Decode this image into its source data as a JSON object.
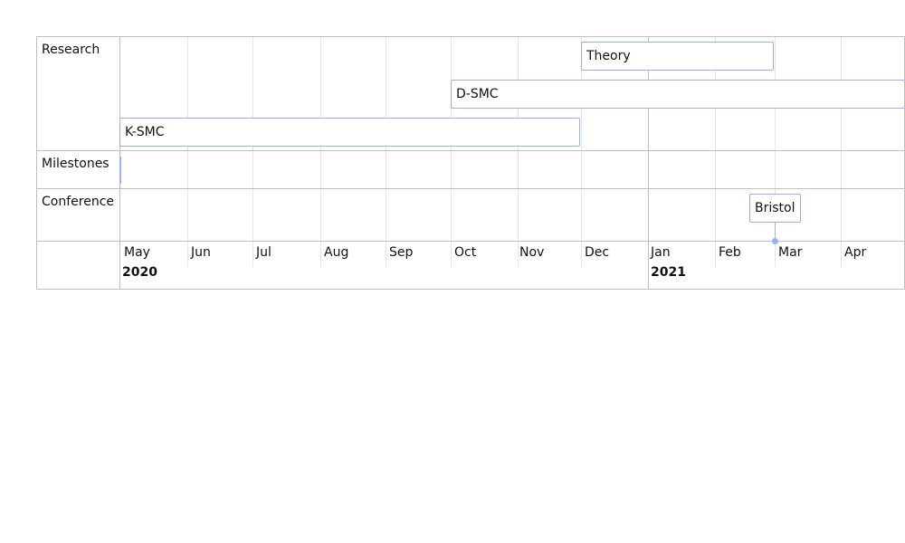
{
  "groups": {
    "research": "Research",
    "milestones": "Milestones",
    "conference": "Conference"
  },
  "items": {
    "theory": "Theory",
    "d_smc": "D-SMC",
    "k_smc": "K-SMC",
    "bristol": "Bristol"
  },
  "axis": {
    "months": [
      "May",
      "Jun",
      "Jul",
      "Aug",
      "Sep",
      "Oct",
      "Nov",
      "Dec",
      "Jan",
      "Feb",
      "Mar",
      "Apr"
    ],
    "years": [
      "2020",
      "2021"
    ]
  },
  "colors": {
    "item_border": "#97b0f8",
    "grid_minor": "#e5e5e5",
    "grid_major": "#bfbfbf"
  }
}
